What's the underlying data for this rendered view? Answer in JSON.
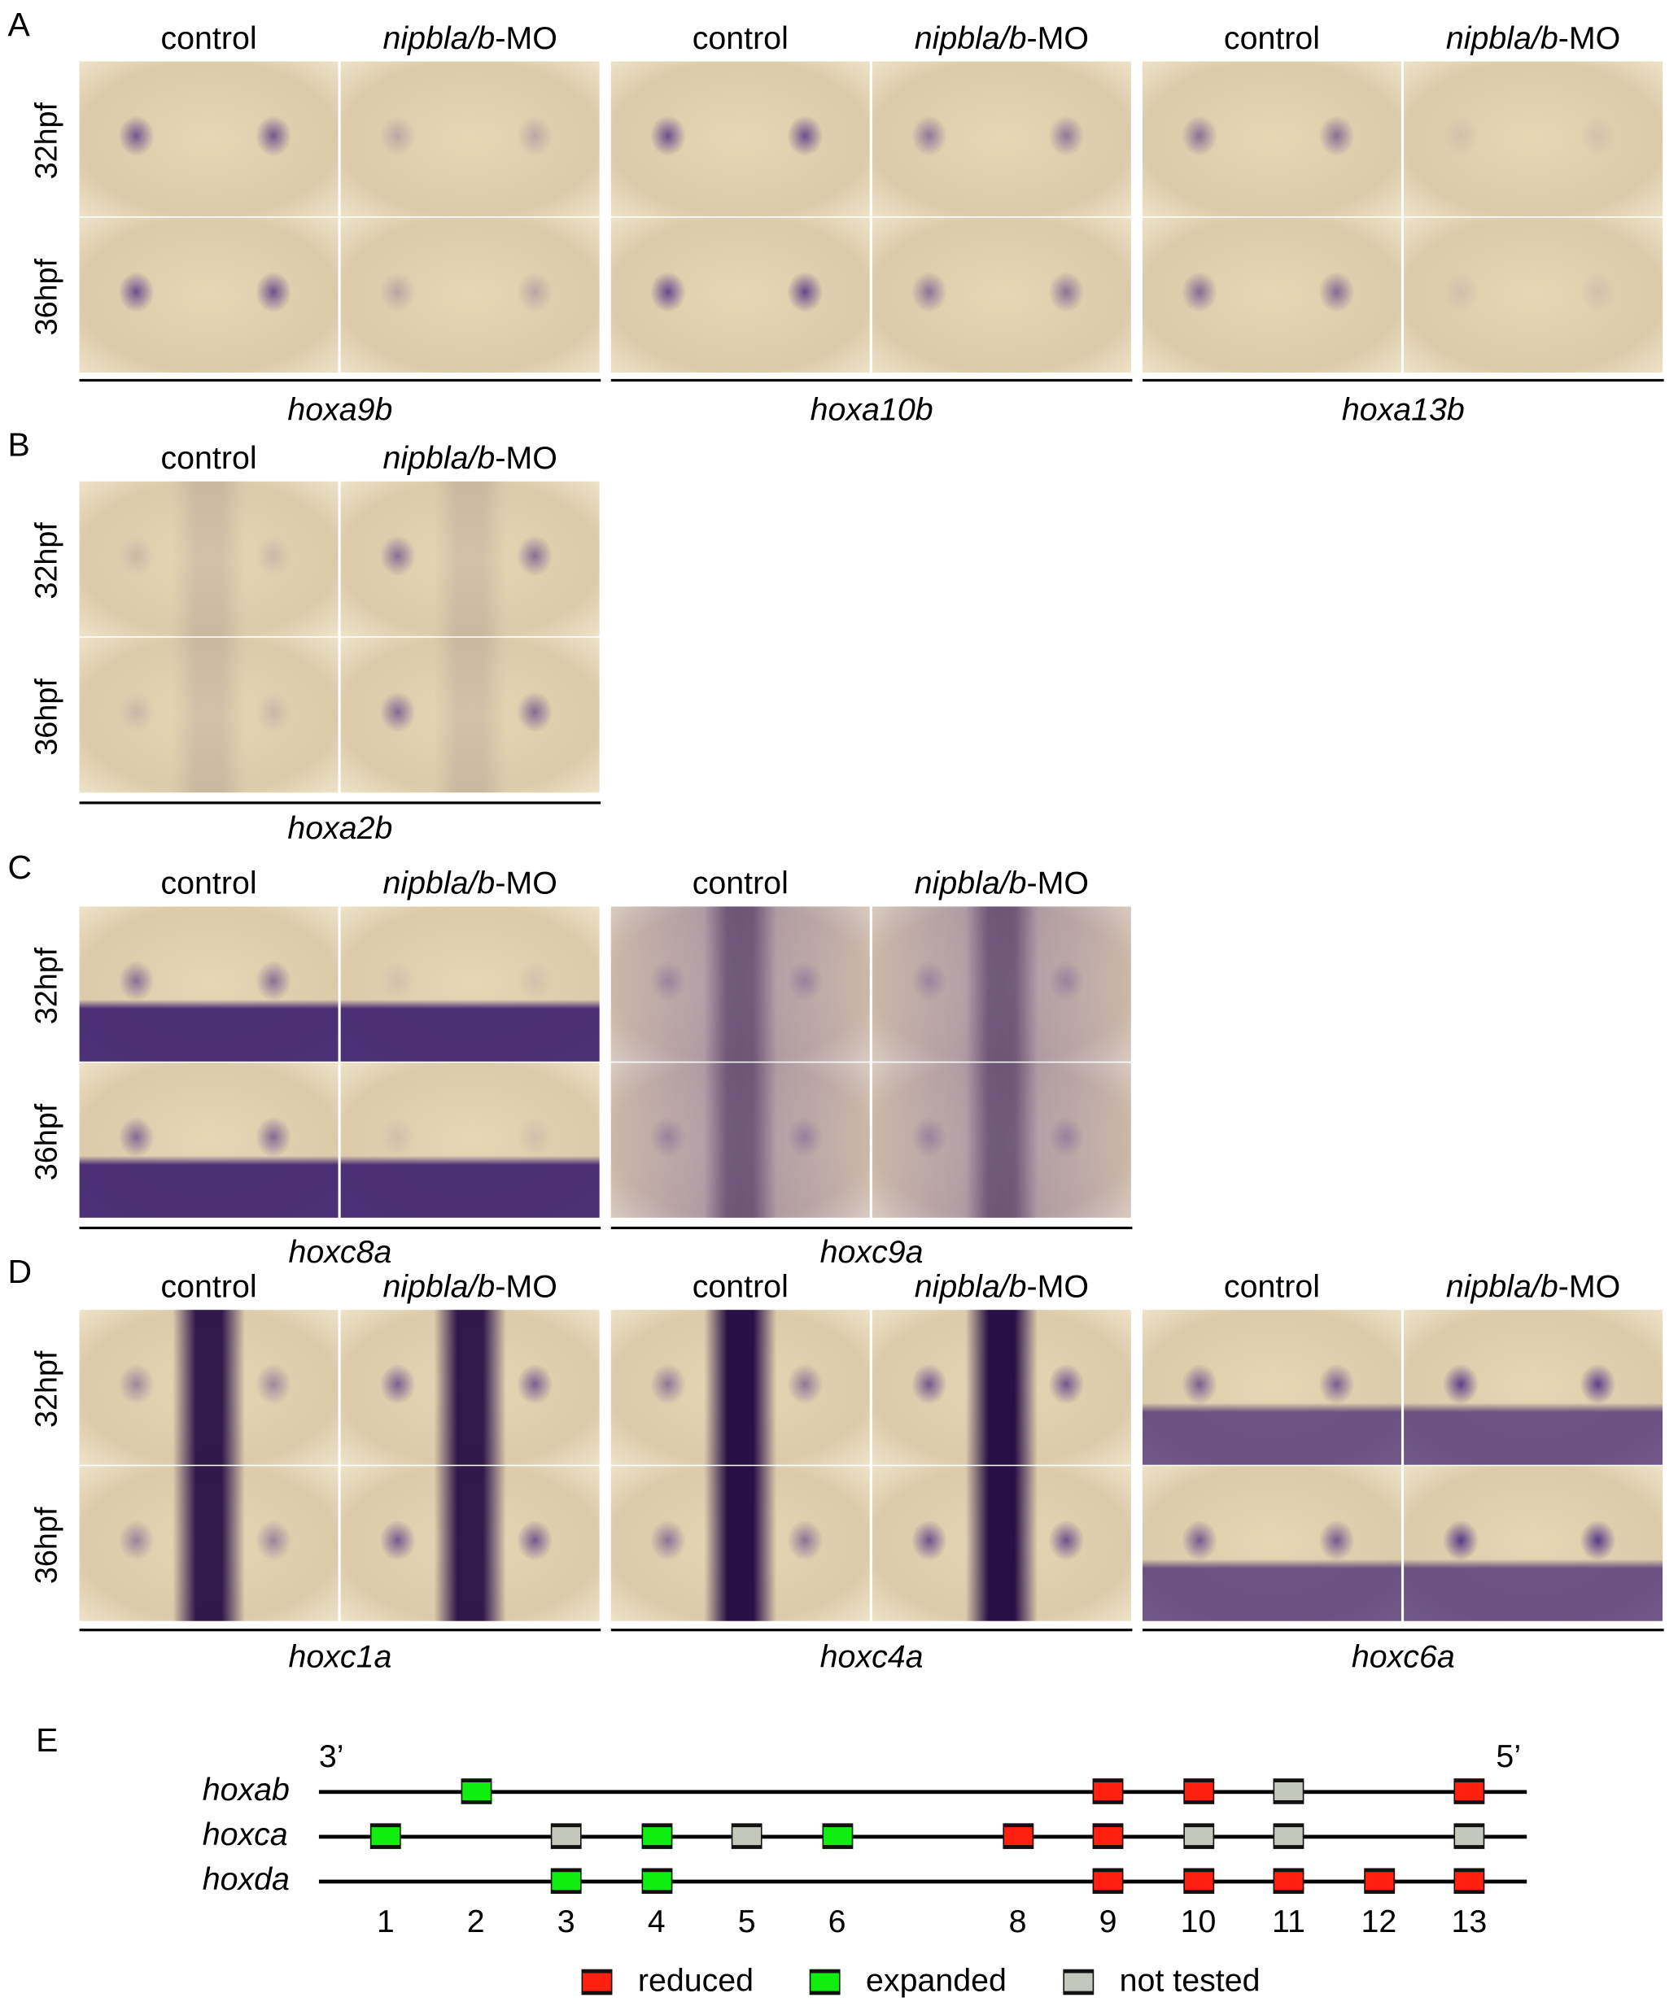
{
  "panels": [
    {
      "letter": "A",
      "rows": [
        "32hpf",
        "36hpf"
      ],
      "groups": [
        {
          "gene": "hoxa9b",
          "control": "control",
          "mo_italic": "nipbla/b",
          "mo_suffix": "-MO"
        },
        {
          "gene": "hoxa10b",
          "control": "control",
          "mo_italic": "nipbla/b",
          "mo_suffix": "-MO"
        },
        {
          "gene": "hoxa13b",
          "control": "control",
          "mo_italic": "nipbla/b",
          "mo_suffix": "-MO"
        }
      ]
    },
    {
      "letter": "B",
      "rows": [
        "32hpf",
        "36hpf"
      ],
      "groups": [
        {
          "gene": "hoxa2b",
          "control": "control",
          "mo_italic": "nipbla/b",
          "mo_suffix": "-MO"
        }
      ]
    },
    {
      "letter": "C",
      "rows": [
        "32hpf",
        "36hpf"
      ],
      "groups": [
        {
          "gene": "hoxc8a",
          "control": "control",
          "mo_italic": "nipbla/b",
          "mo_suffix": "-MO"
        },
        {
          "gene": "hoxc9a",
          "control": "control",
          "mo_italic": "nipbla/b",
          "mo_suffix": "-MO"
        }
      ]
    },
    {
      "letter": "D",
      "rows": [
        "32hpf",
        "36hpf"
      ],
      "groups": [
        {
          "gene": "hoxc1a",
          "control": "control",
          "mo_italic": "nipbla/b",
          "mo_suffix": "-MO"
        },
        {
          "gene": "hoxc4a",
          "control": "control",
          "mo_italic": "nipbla/b",
          "mo_suffix": "-MO"
        },
        {
          "gene": "hoxc6a",
          "control": "control",
          "mo_italic": "nipbla/b",
          "mo_suffix": "-MO"
        }
      ]
    }
  ],
  "panel_e": {
    "letter": "E",
    "end_3": "3’",
    "end_5": "5’",
    "paralog_numbers": [
      "1",
      "2",
      "3",
      "4",
      "5",
      "6",
      "8",
      "9",
      "10",
      "11",
      "12",
      "13"
    ],
    "clusters": [
      {
        "name": "hoxab",
        "genes": [
          {
            "n": 2,
            "status": "expanded"
          },
          {
            "n": 9,
            "status": "reduced"
          },
          {
            "n": 10,
            "status": "reduced"
          },
          {
            "n": 11,
            "status": "not tested"
          },
          {
            "n": 13,
            "status": "reduced"
          }
        ]
      },
      {
        "name": "hoxca",
        "genes": [
          {
            "n": 1,
            "status": "expanded"
          },
          {
            "n": 3,
            "status": "not tested"
          },
          {
            "n": 4,
            "status": "expanded"
          },
          {
            "n": 5,
            "status": "not tested"
          },
          {
            "n": 6,
            "status": "expanded"
          },
          {
            "n": 8,
            "status": "reduced"
          },
          {
            "n": 9,
            "status": "reduced"
          },
          {
            "n": 10,
            "status": "not tested"
          },
          {
            "n": 11,
            "status": "not tested"
          },
          {
            "n": 13,
            "status": "not tested"
          }
        ]
      },
      {
        "name": "hoxda",
        "genes": [
          {
            "n": 3,
            "status": "expanded"
          },
          {
            "n": 4,
            "status": "expanded"
          },
          {
            "n": 9,
            "status": "reduced"
          },
          {
            "n": 10,
            "status": "reduced"
          },
          {
            "n": 11,
            "status": "reduced"
          },
          {
            "n": 12,
            "status": "reduced"
          },
          {
            "n": 13,
            "status": "reduced"
          }
        ]
      }
    ],
    "legend": [
      {
        "status": "reduced",
        "label": "reduced",
        "color": "#ff2010"
      },
      {
        "status": "expanded",
        "label": "expanded",
        "color": "#10ee10"
      },
      {
        "status": "not tested",
        "label": "not tested",
        "color": "#c4c8bc"
      }
    ]
  }
}
